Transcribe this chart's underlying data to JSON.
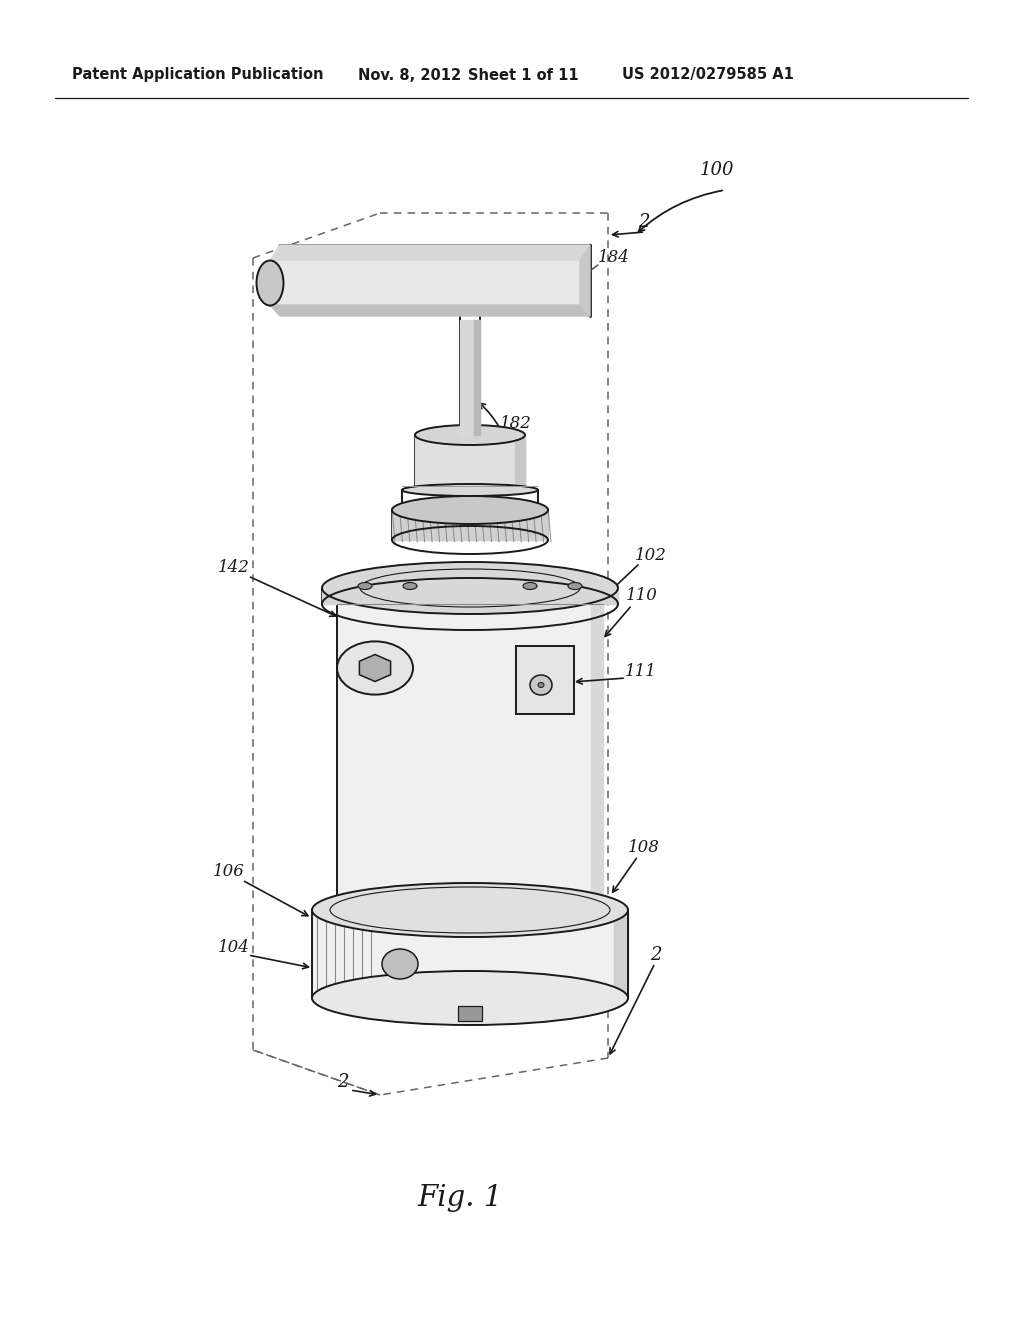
{
  "bg_color": "#ffffff",
  "line_color": "#1a1a1a",
  "gray_light": "#e8e8e8",
  "gray_mid": "#cccccc",
  "gray_dark": "#aaaaaa",
  "header_text": "Patent Application Publication",
  "header_date": "Nov. 8, 2012",
  "header_sheet": "Sheet 1 of 11",
  "header_patent": "US 2012/0279585 A1",
  "fig_label": "Fig. 1"
}
